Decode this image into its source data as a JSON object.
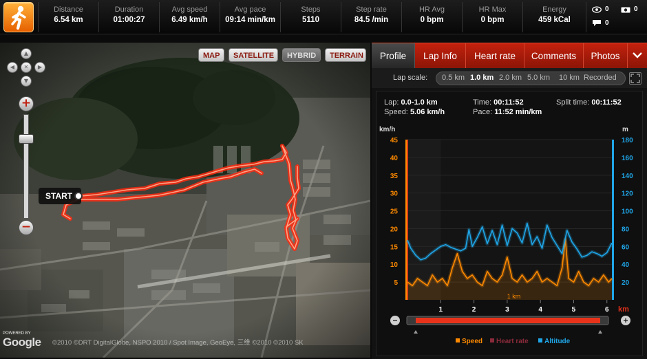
{
  "stats": [
    {
      "label": "Distance",
      "value": "6.54 km"
    },
    {
      "label": "Duration",
      "value": "01:00:27"
    },
    {
      "label": "Avg speed",
      "value": "6.49 km/h"
    },
    {
      "label": "Avg pace",
      "value": "09:14 min/km"
    },
    {
      "label": "Steps",
      "value": "5110"
    },
    {
      "label": "Step rate",
      "value": "84.5 /min"
    },
    {
      "label": "HR Avg",
      "value": "0 bpm"
    },
    {
      "label": "HR Max",
      "value": "0 bpm"
    },
    {
      "label": "Energy",
      "value": "459 kCal"
    }
  ],
  "social": {
    "views": "0",
    "photos": "0",
    "comments": "0"
  },
  "activity_icon": "running-person-icon",
  "map": {
    "types": [
      "MAP",
      "SATELLITE",
      "HYBRID",
      "TERRAIN"
    ],
    "active_type": "HYBRID",
    "start_label": "START",
    "copyright": "©2010 ©DRT DigitalGlobe, NSPO 2010 / Spot Image, GeoEye, 三维 ©2010 ©2010 SK",
    "powered_by": "POWERED BY",
    "google": "Google",
    "track_color": "#ff3b1f"
  },
  "tabs": [
    "Profile",
    "Lap Info",
    "Heart rate",
    "Comments",
    "Photos"
  ],
  "active_tab": "Profile",
  "lap_scale": {
    "label": "Lap scale:",
    "options": [
      "0.5 km",
      "1.0 km",
      "2.0 km",
      "5.0 km",
      "10 km",
      "Recorded"
    ],
    "selected": "1.0 km"
  },
  "lap_info": {
    "lap_label": "Lap:",
    "lap": "0.0-1.0 km",
    "speed_label": "Speed:",
    "speed": "5.06 km/h",
    "time_label": "Time:",
    "time": "00:11:52",
    "pace_label": "Pace:",
    "pace": "11:52 min/km",
    "split_label": "Split time:",
    "split": "00:11:52"
  },
  "chart_data": {
    "type": "line",
    "xlabel": "km",
    "ylabel_left": "km/h",
    "ylabel_right": "m",
    "x_ticks": [
      1,
      2,
      3,
      4,
      5,
      6
    ],
    "xlim": [
      0,
      6.15
    ],
    "ylim_left": [
      0,
      45
    ],
    "ylim_right": [
      0,
      180
    ],
    "y_ticks_left": [
      5,
      10,
      15,
      20,
      25,
      30,
      35,
      40,
      45
    ],
    "y_ticks_right": [
      20,
      40,
      60,
      80,
      100,
      120,
      140,
      160,
      180
    ],
    "lap_annotation": "1 km",
    "legend": [
      "Speed",
      "Heart rate",
      "Altitude"
    ],
    "legend_colors": [
      "#ff8a00",
      "#8a2a3a",
      "#1fa6e8"
    ],
    "series": [
      {
        "name": "Speed",
        "axis": "left",
        "x": [
          0,
          0.15,
          0.3,
          0.45,
          0.6,
          0.75,
          0.9,
          1.05,
          1.2,
          1.35,
          1.5,
          1.65,
          1.8,
          1.95,
          2.1,
          2.25,
          2.4,
          2.55,
          2.7,
          2.85,
          3.0,
          3.15,
          3.3,
          3.45,
          3.6,
          3.75,
          3.9,
          4.05,
          4.2,
          4.35,
          4.5,
          4.65,
          4.75,
          4.85,
          5.0,
          5.15,
          5.3,
          5.45,
          5.6,
          5.75,
          5.9,
          6.05,
          6.15
        ],
        "values": [
          5,
          4,
          6,
          5,
          4,
          7,
          5,
          6,
          4,
          9,
          13,
          8,
          6,
          7,
          5,
          4,
          8,
          6,
          5,
          7,
          12,
          6,
          5,
          7,
          5,
          6,
          8,
          5,
          6,
          5,
          4,
          9,
          17,
          6,
          5,
          8,
          5,
          4,
          6,
          5,
          7,
          5,
          6
        ]
      },
      {
        "name": "Altitude",
        "axis": "right",
        "x": [
          0,
          0.1,
          0.25,
          0.4,
          0.55,
          0.7,
          0.85,
          1.0,
          1.15,
          1.3,
          1.45,
          1.6,
          1.75,
          1.85,
          1.95,
          2.1,
          2.25,
          2.4,
          2.55,
          2.7,
          2.85,
          3.0,
          3.15,
          3.3,
          3.45,
          3.6,
          3.75,
          3.9,
          4.05,
          4.2,
          4.35,
          4.5,
          4.65,
          4.8,
          4.95,
          5.1,
          5.25,
          5.4,
          5.55,
          5.7,
          5.85,
          6.0,
          6.15
        ],
        "values": [
          67,
          58,
          50,
          45,
          47,
          52,
          56,
          60,
          62,
          59,
          57,
          55,
          58,
          79,
          60,
          70,
          82,
          63,
          78,
          62,
          84,
          61,
          80,
          75,
          64,
          86,
          62,
          71,
          58,
          84,
          70,
          61,
          52,
          78,
          65,
          57,
          48,
          50,
          54,
          52,
          49,
          53,
          64
        ]
      }
    ]
  }
}
